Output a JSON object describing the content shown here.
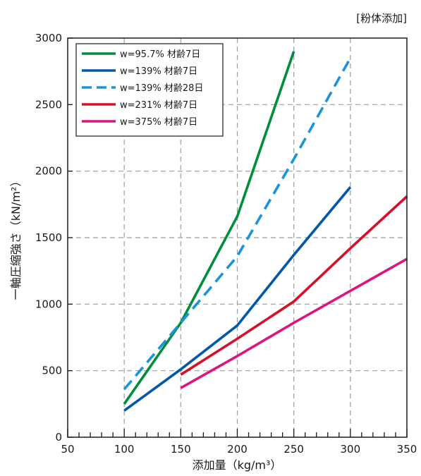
{
  "chart_data": {
    "type": "line",
    "note": "[粉体添加]",
    "xlabel": "添加量（kg/m³）",
    "ylabel": "一軸圧縮強さ（kN/m²）",
    "xlim": [
      50,
      350
    ],
    "ylim": [
      0,
      3000
    ],
    "xticks": [
      50,
      100,
      150,
      200,
      250,
      300,
      350
    ],
    "yticks": [
      0,
      500,
      1000,
      1500,
      2000,
      2500,
      3000
    ],
    "grid": true,
    "legend_position": "top-left",
    "series": [
      {
        "name": "w=95.7% 材齢7日",
        "color": "#008d3c",
        "dashed": false,
        "x": [
          100,
          150,
          200,
          250
        ],
        "y": [
          250,
          860,
          1660,
          2900
        ]
      },
      {
        "name": "w=139% 材齢7日",
        "color": "#0058a6",
        "dashed": false,
        "x": [
          100,
          150,
          200,
          250,
          300
        ],
        "y": [
          200,
          510,
          840,
          1370,
          1880
        ]
      },
      {
        "name": "w=139% 材齢28日",
        "color": "#1a94d9",
        "dashed": true,
        "x": [
          100,
          150,
          200,
          250,
          300
        ],
        "y": [
          360,
          860,
          1360,
          2090,
          2850
        ]
      },
      {
        "name": "w=231% 材齢7日",
        "color": "#d7102a",
        "dashed": false,
        "x": [
          150,
          200,
          250,
          300,
          350
        ],
        "y": [
          470,
          740,
          1020,
          1420,
          1810
        ]
      },
      {
        "name": "w=375% 材齢7日",
        "color": "#dc1480",
        "dashed": false,
        "x": [
          150,
          200,
          250,
          300,
          350
        ],
        "y": [
          370,
          610,
          860,
          1100,
          1340
        ]
      }
    ]
  }
}
